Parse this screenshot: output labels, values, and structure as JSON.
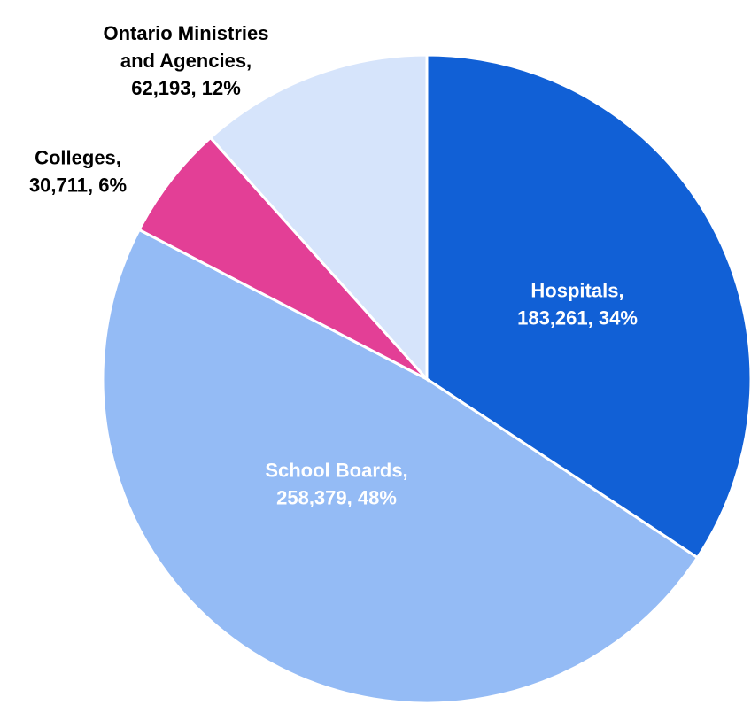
{
  "chart_data": {
    "type": "pie",
    "values": [
      183261,
      258379,
      30711,
      62193
    ],
    "value_labels": [
      [
        "Hospitals,",
        "183,261, 34%"
      ],
      [
        "School Boards,",
        "258,379, 48%"
      ],
      [
        "Colleges,",
        "30,711, 6%"
      ],
      [
        "Ontario Ministries",
        "and Agencies,",
        "62,193, 12%"
      ]
    ],
    "colors": [
      "#1160d6",
      "#94bbf5",
      "#e33f96",
      "#d6e4fb"
    ],
    "label_colors": [
      "#ffffff",
      "#ffffff",
      "#000000",
      "#000000"
    ]
  }
}
